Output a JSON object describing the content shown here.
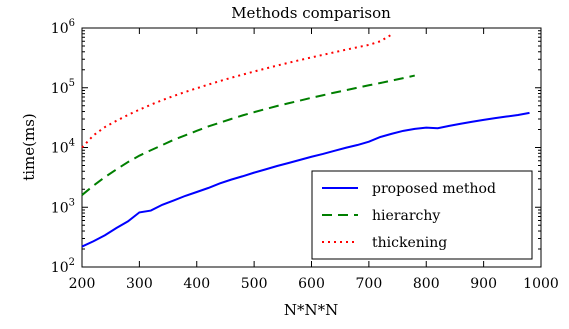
{
  "chart_data": {
    "type": "line",
    "title": "Methods comparison",
    "xlabel": "N*N*N",
    "ylabel": "time(ms)",
    "xlim": [
      200,
      1000
    ],
    "ylim": [
      100,
      1000000
    ],
    "yscale": "log",
    "grid": false,
    "legend_position": "lower-right",
    "x_ticks": [
      "200",
      "300",
      "400",
      "500",
      "600",
      "700",
      "800",
      "900",
      "1000"
    ],
    "y_ticks": [
      {
        "base": "10",
        "exp": "2"
      },
      {
        "base": "10",
        "exp": "3"
      },
      {
        "base": "10",
        "exp": "4"
      },
      {
        "base": "10",
        "exp": "5"
      },
      {
        "base": "10",
        "exp": "6"
      }
    ],
    "series": [
      {
        "name": "proposed method",
        "color": "#0000ff",
        "style": "solid",
        "x": [
          200,
          220,
          240,
          260,
          280,
          300,
          320,
          340,
          360,
          380,
          400,
          420,
          440,
          460,
          480,
          500,
          520,
          540,
          560,
          580,
          600,
          620,
          640,
          660,
          680,
          700,
          720,
          740,
          760,
          780,
          800,
          820,
          840,
          860,
          880,
          900,
          920,
          940,
          960,
          980
        ],
        "y": [
          220,
          270,
          340,
          450,
          580,
          820,
          880,
          1100,
          1300,
          1550,
          1800,
          2100,
          2500,
          2900,
          3300,
          3800,
          4300,
          4900,
          5500,
          6200,
          7000,
          7800,
          8800,
          9900,
          11000,
          12500,
          15000,
          17000,
          19000,
          20500,
          21500,
          21000,
          23000,
          25000,
          27000,
          29000,
          31000,
          33000,
          35000,
          38000
        ]
      },
      {
        "name": "hierarchy",
        "color": "#007f00",
        "style": "dashed",
        "x": [
          200,
          220,
          240,
          260,
          280,
          300,
          320,
          340,
          360,
          380,
          400,
          420,
          440,
          460,
          480,
          500,
          520,
          540,
          560,
          580,
          600,
          620,
          640,
          660,
          680,
          700,
          720,
          740,
          760,
          780
        ],
        "y": [
          1600,
          2300,
          3200,
          4300,
          5700,
          7300,
          9000,
          11000,
          13500,
          16000,
          19000,
          22500,
          26000,
          30000,
          34500,
          39000,
          44000,
          49500,
          55000,
          61000,
          68000,
          75000,
          83000,
          91000,
          100000,
          110000,
          120000,
          132000,
          145000,
          160000
        ]
      },
      {
        "name": "thickening",
        "color": "#ff0000",
        "style": "dotted",
        "x": [
          200,
          220,
          240,
          260,
          280,
          300,
          320,
          340,
          360,
          380,
          400,
          420,
          440,
          460,
          480,
          500,
          520,
          540,
          560,
          580,
          600,
          620,
          640,
          660,
          680,
          700,
          720,
          740
        ],
        "y": [
          10000,
          16000,
          22000,
          28000,
          35000,
          43000,
          52000,
          62000,
          73000,
          85000,
          98000,
          113000,
          129000,
          147000,
          166000,
          187000,
          210000,
          235000,
          262000,
          291000,
          322000,
          356000,
          393000,
          433000,
          476000,
          522000,
          600000,
          780000
        ]
      }
    ]
  }
}
